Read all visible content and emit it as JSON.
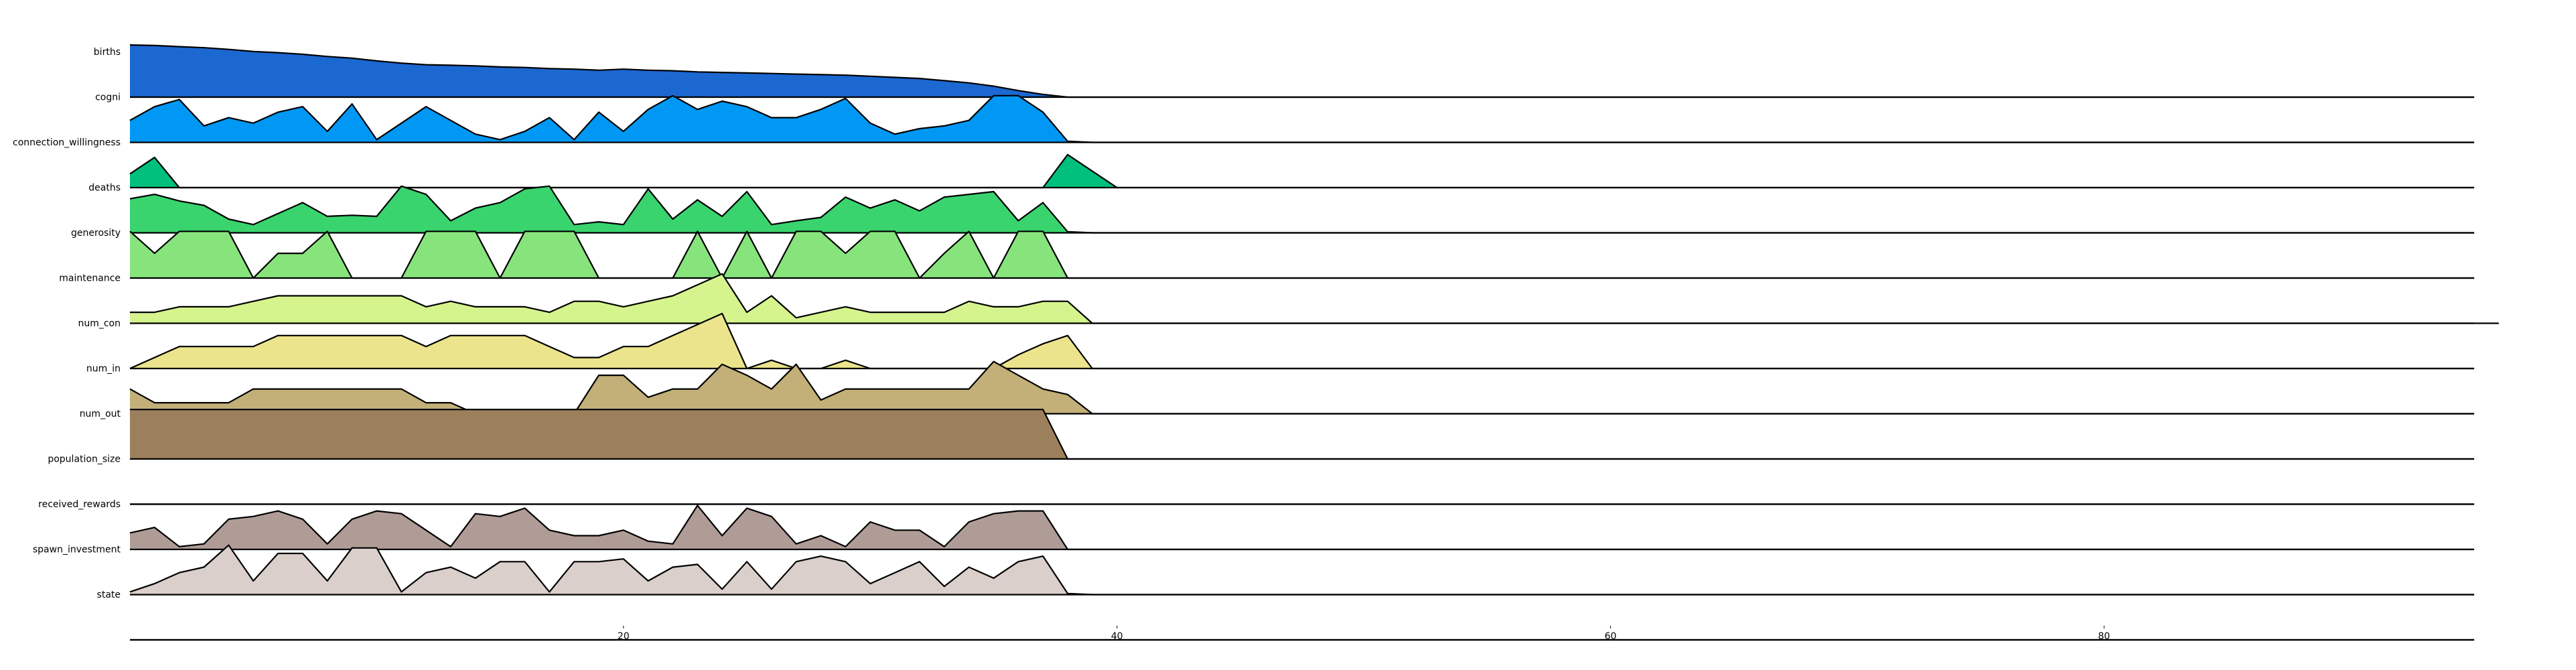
{
  "chart_data": {
    "type": "area",
    "layout": "ridgeline",
    "x_range": [
      0,
      95
    ],
    "xticks": [
      20,
      40,
      60,
      80
    ],
    "xtick_labels": [
      "20",
      "40",
      "60",
      "80"
    ],
    "grid": false,
    "legend": "none",
    "series": [
      {
        "name": "births",
        "color": "#1c68d1",
        "values": [
          0.95,
          0.94,
          0.92,
          0.9,
          0.87,
          0.83,
          0.81,
          0.78,
          0.74,
          0.71,
          0.66,
          0.62,
          0.59,
          0.58,
          0.57,
          0.55,
          0.54,
          0.52,
          0.51,
          0.49,
          0.51,
          0.49,
          0.48,
          0.46,
          0.45,
          0.44,
          0.43,
          0.42,
          0.41,
          0.4,
          0.38,
          0.36,
          0.34,
          0.3,
          0.26,
          0.2,
          0.12,
          0.05,
          0,
          0,
          0,
          0,
          0,
          0,
          0,
          0,
          0,
          0,
          0,
          0,
          0,
          0,
          0,
          0,
          0,
          0,
          0,
          0,
          0,
          0,
          0,
          0,
          0,
          0,
          0,
          0,
          0,
          0,
          0,
          0,
          0,
          0,
          0,
          0,
          0,
          0,
          0,
          0,
          0,
          0,
          0,
          0,
          0,
          0,
          0,
          0,
          0,
          0,
          0,
          0,
          0,
          0,
          0,
          0,
          0,
          0
        ]
      },
      {
        "name": "cogni",
        "color": "#0098f4",
        "values": [
          0.4,
          0.65,
          0.78,
          0.3,
          0.45,
          0.35,
          0.55,
          0.65,
          0.2,
          0.7,
          0.05,
          0.35,
          0.65,
          0.4,
          0.15,
          0.05,
          0.2,
          0.45,
          0.05,
          0.55,
          0.2,
          0.6,
          0.85,
          0.6,
          0.75,
          0.65,
          0.45,
          0.45,
          0.6,
          0.8,
          0.35,
          0.15,
          0.25,
          0.3,
          0.4,
          0.85,
          0.85,
          0.55,
          0.02,
          0,
          0,
          0,
          0,
          0,
          0,
          0,
          0,
          0,
          0,
          0,
          0,
          0,
          0,
          0,
          0,
          0,
          0,
          0,
          0,
          0,
          0,
          0,
          0,
          0,
          0,
          0,
          0,
          0,
          0,
          0,
          0,
          0,
          0,
          0,
          0,
          0,
          0,
          0,
          0,
          0,
          0,
          0,
          0,
          0,
          0,
          0,
          0,
          0,
          0,
          0,
          0,
          0,
          0,
          0,
          0,
          0
        ]
      },
      {
        "name": "connection_willingness",
        "color": "#00c07c",
        "values": [
          0.25,
          0.55,
          0,
          0,
          0,
          0,
          0,
          0,
          0,
          0,
          0,
          0,
          0,
          0,
          0,
          0,
          0,
          0,
          0,
          0,
          0,
          0,
          0,
          0,
          0,
          0,
          0,
          0,
          0,
          0,
          0,
          0,
          0,
          0,
          0,
          0,
          0,
          0,
          0.6,
          0.3,
          0,
          0,
          0,
          0,
          0,
          0,
          0,
          0,
          0,
          0,
          0,
          0,
          0,
          0,
          0,
          0,
          0,
          0,
          0,
          0,
          0,
          0,
          0,
          0,
          0,
          0,
          0,
          0,
          0,
          0,
          0,
          0,
          0,
          0,
          0,
          0,
          0,
          0,
          0,
          0,
          0,
          0,
          0,
          0,
          0,
          0,
          0,
          0,
          0,
          0,
          0,
          0,
          0,
          0,
          0,
          0
        ]
      },
      {
        "name": "deaths",
        "color": "#3ad46f",
        "values": [
          0.62,
          0.7,
          0.58,
          0.5,
          0.25,
          0.15,
          0.35,
          0.55,
          0.3,
          0.32,
          0.3,
          0.85,
          0.7,
          0.22,
          0.45,
          0.55,
          0.8,
          0.85,
          0.15,
          0.2,
          0.15,
          0.8,
          0.25,
          0.6,
          0.3,
          0.75,
          0.15,
          0.22,
          0.28,
          0.65,
          0.45,
          0.6,
          0.4,
          0.65,
          0.7,
          0.75,
          0.22,
          0.55,
          0.02,
          0,
          0,
          0,
          0,
          0,
          0,
          0,
          0,
          0,
          0,
          0,
          0,
          0,
          0,
          0,
          0,
          0,
          0,
          0,
          0,
          0,
          0,
          0,
          0,
          0,
          0,
          0,
          0,
          0,
          0,
          0,
          0,
          0,
          0,
          0,
          0,
          0,
          0,
          0,
          0,
          0,
          0,
          0,
          0,
          0,
          0,
          0,
          0,
          0,
          0,
          0,
          0,
          0,
          0,
          0,
          0,
          0
        ]
      },
      {
        "name": "generosity",
        "color": "#87e47c",
        "values": [
          0.85,
          0.45,
          0.85,
          0.85,
          0.85,
          0,
          0.45,
          0.45,
          0.85,
          0,
          0,
          0,
          0.85,
          0.85,
          0.85,
          0,
          0.85,
          0.85,
          0.85,
          0,
          0,
          0,
          0,
          0.85,
          0,
          0.85,
          0,
          0.85,
          0.85,
          0.45,
          0.85,
          0.85,
          0,
          0.45,
          0.85,
          0,
          0.85,
          0.85,
          0,
          0,
          0,
          0,
          0,
          0,
          0,
          0,
          0,
          0,
          0,
          0,
          0,
          0,
          0,
          0,
          0,
          0,
          0,
          0,
          0,
          0,
          0,
          0,
          0,
          0,
          0,
          0,
          0,
          0,
          0,
          0,
          0,
          0,
          0,
          0,
          0,
          0,
          0,
          0,
          0,
          0,
          0,
          0,
          0,
          0,
          0,
          0,
          0,
          0,
          0,
          0,
          0,
          0,
          0,
          0,
          0,
          0
        ]
      },
      {
        "name": "maintenance",
        "color": "#d6f48e",
        "values": [
          0.2,
          0.2,
          0.3,
          0.3,
          0.3,
          0.4,
          0.5,
          0.5,
          0.5,
          0.5,
          0.5,
          0.5,
          0.3,
          0.4,
          0.3,
          0.3,
          0.3,
          0.2,
          0.4,
          0.4,
          0.3,
          0.4,
          0.5,
          0.7,
          0.9,
          0.2,
          0.5,
          0.1,
          0.2,
          0.3,
          0.2,
          0.2,
          0.2,
          0.2,
          0.4,
          0.3,
          0.3,
          0.4,
          0.4,
          0,
          0,
          0,
          0,
          0,
          0,
          0,
          0,
          0,
          0,
          0,
          0,
          0,
          0,
          0,
          0,
          0,
          0,
          0,
          0,
          0,
          0,
          0,
          0,
          0,
          0,
          0,
          0,
          0,
          0,
          0,
          0,
          0,
          0,
          0,
          0,
          0,
          0,
          0,
          0,
          0,
          0,
          0,
          0,
          0,
          0,
          0,
          0,
          0,
          0,
          0,
          0,
          0,
          0,
          0,
          0,
          0,
          0
        ]
      },
      {
        "name": "num_con",
        "color": "#ebe48c",
        "values": [
          0,
          0.2,
          0.4,
          0.4,
          0.4,
          0.4,
          0.6,
          0.6,
          0.6,
          0.6,
          0.6,
          0.6,
          0.4,
          0.6,
          0.6,
          0.6,
          0.6,
          0.4,
          0.2,
          0.2,
          0.4,
          0.4,
          0.6,
          0.8,
          1.0,
          0,
          0.15,
          0,
          0,
          0.15,
          0,
          0,
          0,
          0,
          0,
          0,
          0.25,
          0.45,
          0.6,
          0,
          0,
          0,
          0,
          0,
          0,
          0,
          0,
          0,
          0,
          0,
          0,
          0,
          0,
          0,
          0,
          0,
          0,
          0,
          0,
          0,
          0,
          0,
          0,
          0,
          0,
          0,
          0,
          0,
          0,
          0,
          0,
          0,
          0,
          0,
          0,
          0,
          0,
          0,
          0,
          0,
          0,
          0,
          0,
          0,
          0,
          0,
          0,
          0,
          0,
          0,
          0,
          0,
          0,
          0,
          0,
          0
        ]
      },
      {
        "name": "num_in",
        "color": "#c3b078",
        "values": [
          0.45,
          0.2,
          0.2,
          0.2,
          0.2,
          0.45,
          0.45,
          0.45,
          0.45,
          0.45,
          0.45,
          0.45,
          0.2,
          0.2,
          0,
          0,
          0,
          0,
          0,
          0.7,
          0.7,
          0.3,
          0.45,
          0.45,
          0.9,
          0.7,
          0.45,
          0.9,
          0.25,
          0.45,
          0.45,
          0.45,
          0.45,
          0.45,
          0.45,
          0.95,
          0.7,
          0.45,
          0.35,
          0,
          0,
          0,
          0,
          0,
          0,
          0,
          0,
          0,
          0,
          0,
          0,
          0,
          0,
          0,
          0,
          0,
          0,
          0,
          0,
          0,
          0,
          0,
          0,
          0,
          0,
          0,
          0,
          0,
          0,
          0,
          0,
          0,
          0,
          0,
          0,
          0,
          0,
          0,
          0,
          0,
          0,
          0,
          0,
          0,
          0,
          0,
          0,
          0,
          0,
          0,
          0,
          0,
          0,
          0,
          0,
          0
        ]
      },
      {
        "name": "num_out",
        "color": "#9c805c",
        "values": [
          0.9,
          0.9,
          0.9,
          0.9,
          0.9,
          0.9,
          0.9,
          0.9,
          0.9,
          0.9,
          0.9,
          0.9,
          0.9,
          0.9,
          0.9,
          0.9,
          0.9,
          0.9,
          0.9,
          0.9,
          0.9,
          0.9,
          0.9,
          0.9,
          0.9,
          0.9,
          0.9,
          0.9,
          0.9,
          0.9,
          0.9,
          0.9,
          0.9,
          0.9,
          0.9,
          0.9,
          0.9,
          0.9,
          0,
          0,
          0,
          0,
          0,
          0,
          0,
          0,
          0,
          0,
          0,
          0,
          0,
          0,
          0,
          0,
          0,
          0,
          0,
          0,
          0,
          0,
          0,
          0,
          0,
          0,
          0,
          0,
          0,
          0,
          0,
          0,
          0,
          0,
          0,
          0,
          0,
          0,
          0,
          0,
          0,
          0,
          0,
          0,
          0,
          0,
          0,
          0,
          0,
          0,
          0,
          0,
          0,
          0,
          0,
          0,
          0,
          0
        ]
      },
      {
        "name": "population_size",
        "color": "#9c805c",
        "values": [
          0,
          0,
          0,
          0,
          0,
          0,
          0,
          0,
          0,
          0,
          0,
          0,
          0,
          0,
          0,
          0,
          0,
          0,
          0,
          0,
          0,
          0,
          0,
          0,
          0,
          0,
          0,
          0,
          0,
          0,
          0,
          0,
          0,
          0,
          0,
          0,
          0,
          0,
          0,
          0,
          0,
          0,
          0,
          0,
          0,
          0,
          0,
          0,
          0,
          0,
          0,
          0,
          0,
          0,
          0,
          0,
          0,
          0,
          0,
          0,
          0,
          0,
          0,
          0,
          0,
          0,
          0,
          0,
          0,
          0,
          0,
          0,
          0,
          0,
          0,
          0,
          0,
          0,
          0,
          0,
          0,
          0,
          0,
          0,
          0,
          0,
          0,
          0,
          0,
          0,
          0,
          0,
          0,
          0,
          0,
          0
        ]
      },
      {
        "name": "received_rewards",
        "color": "#b09c97",
        "values": [
          0.3,
          0.4,
          0.05,
          0.1,
          0.55,
          0.6,
          0.7,
          0.55,
          0.1,
          0.55,
          0.7,
          0.65,
          0.35,
          0.05,
          0.65,
          0.6,
          0.75,
          0.35,
          0.25,
          0.25,
          0.35,
          0.15,
          0.1,
          0.8,
          0.25,
          0.75,
          0.6,
          0.1,
          0.25,
          0.05,
          0.5,
          0.35,
          0.35,
          0.05,
          0.5,
          0.65,
          0.7,
          0.7,
          0,
          0,
          0,
          0,
          0,
          0,
          0,
          0,
          0,
          0,
          0,
          0,
          0,
          0,
          0,
          0,
          0,
          0,
          0,
          0,
          0,
          0,
          0,
          0,
          0,
          0,
          0,
          0,
          0,
          0,
          0,
          0,
          0,
          0,
          0,
          0,
          0,
          0,
          0,
          0,
          0,
          0,
          0,
          0,
          0,
          0,
          0,
          0,
          0,
          0,
          0,
          0,
          0,
          0,
          0,
          0,
          0,
          0
        ]
      },
      {
        "name": "spawn_investment",
        "color": "#dacfca",
        "values": [
          0.05,
          0.2,
          0.4,
          0.5,
          0.9,
          0.25,
          0.75,
          0.75,
          0.25,
          0.85,
          0.85,
          0.05,
          0.4,
          0.5,
          0.3,
          0.6,
          0.6,
          0.05,
          0.6,
          0.6,
          0.65,
          0.25,
          0.5,
          0.55,
          0.1,
          0.6,
          0.1,
          0.6,
          0.7,
          0.6,
          0.2,
          0.4,
          0.6,
          0.15,
          0.5,
          0.3,
          0.6,
          0.7,
          0.02,
          0,
          0,
          0,
          0,
          0,
          0,
          0,
          0,
          0,
          0,
          0,
          0,
          0,
          0,
          0,
          0,
          0,
          0,
          0,
          0,
          0,
          0,
          0,
          0,
          0,
          0,
          0,
          0,
          0,
          0,
          0,
          0,
          0,
          0,
          0,
          0,
          0,
          0,
          0,
          0,
          0,
          0,
          0,
          0,
          0,
          0,
          0,
          0,
          0,
          0,
          0,
          0,
          0,
          0,
          0,
          0,
          0
        ]
      },
      {
        "name": "state",
        "color": "#dacfca",
        "values": [
          0,
          0,
          0,
          0,
          0,
          0,
          0,
          0,
          0,
          0,
          0,
          0,
          0,
          0,
          0,
          0,
          0,
          0,
          0,
          0,
          0,
          0,
          0,
          0,
          0,
          0,
          0,
          0,
          0,
          0,
          0,
          0,
          0,
          0,
          0,
          0,
          0,
          0,
          0,
          0,
          0,
          0,
          0,
          0,
          0,
          0,
          0,
          0,
          0,
          0,
          0,
          0,
          0,
          0,
          0,
          0,
          0,
          0,
          0,
          0,
          0,
          0,
          0,
          0,
          0,
          0,
          0,
          0,
          0,
          0,
          0,
          0,
          0,
          0,
          0,
          0,
          0,
          0,
          0,
          0,
          0,
          0,
          0,
          0,
          0,
          0,
          0,
          0,
          0,
          0,
          0,
          0,
          0,
          0,
          0,
          0
        ]
      }
    ]
  }
}
